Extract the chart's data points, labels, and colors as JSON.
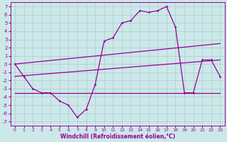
{
  "xlabel": "Windchill (Refroidissement éolien,°C)",
  "bg_color": "#cce8e8",
  "line_color": "#990099",
  "xlim": [
    -0.5,
    23.5
  ],
  "ylim": [
    -7.5,
    7.5
  ],
  "xticks": [
    0,
    1,
    2,
    3,
    4,
    5,
    6,
    7,
    8,
    9,
    10,
    11,
    12,
    13,
    14,
    15,
    16,
    17,
    18,
    19,
    20,
    21,
    22,
    23
  ],
  "yticks": [
    -7,
    -6,
    -5,
    -4,
    -3,
    -2,
    -1,
    0,
    1,
    2,
    3,
    4,
    5,
    6,
    7
  ],
  "main_x": [
    0,
    1,
    2,
    3,
    4,
    5,
    6,
    7,
    8,
    9,
    10,
    11,
    12,
    13,
    14,
    15,
    16,
    17,
    18,
    19,
    20,
    21,
    22,
    23
  ],
  "main_y": [
    0.0,
    -1.5,
    -3.0,
    -3.5,
    -3.5,
    -4.5,
    -5.0,
    -6.5,
    -5.5,
    -2.5,
    2.8,
    3.2,
    5.0,
    5.3,
    6.5,
    6.3,
    6.5,
    7.0,
    4.5,
    -3.5,
    -3.5,
    0.5,
    0.5,
    -1.5
  ],
  "line1_x": [
    0,
    23
  ],
  "line1_y": [
    0.0,
    2.5
  ],
  "line2_x": [
    0,
    23
  ],
  "line2_y": [
    -1.5,
    0.5
  ],
  "line3_x": [
    0,
    23
  ],
  "line3_y": [
    -3.5,
    -3.5
  ],
  "grid_color": "#aacccc",
  "font_color": "#990099",
  "xticklabels": [
    "0",
    "1",
    "2",
    "3",
    "4",
    "5",
    "6",
    "7",
    "8",
    "9",
    "10",
    "11",
    "12",
    "13",
    "14",
    "15",
    "16",
    "17",
    "18",
    "19",
    "20",
    "21",
    "22",
    "23"
  ],
  "yticklabels": [
    "-7",
    "-6",
    "-5",
    "-4",
    "-3",
    "-2",
    "-1",
    "0",
    "1",
    "2",
    "3",
    "4",
    "5",
    "6",
    "7"
  ]
}
